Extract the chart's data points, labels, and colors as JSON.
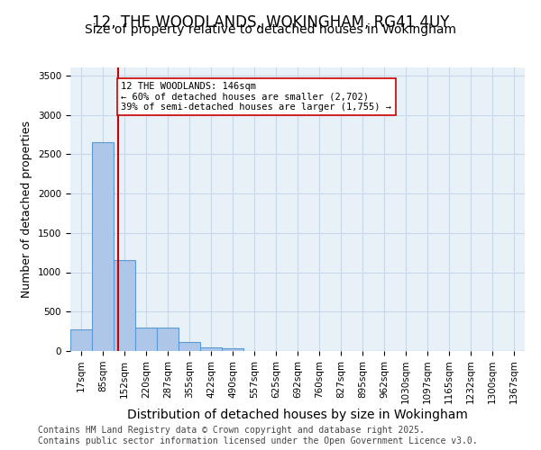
{
  "title_line1": "12, THE WOODLANDS, WOKINGHAM, RG41 4UY",
  "title_line2": "Size of property relative to detached houses in Wokingham",
  "xlabel": "Distribution of detached houses by size in Wokingham",
  "ylabel": "Number of detached properties",
  "bin_labels": [
    "17sqm",
    "85sqm",
    "152sqm",
    "220sqm",
    "287sqm",
    "355sqm",
    "422sqm",
    "490sqm",
    "557sqm",
    "625sqm",
    "692sqm",
    "760sqm",
    "827sqm",
    "895sqm",
    "962sqm",
    "1030sqm",
    "1097sqm",
    "1165sqm",
    "1232sqm",
    "1300sqm",
    "1367sqm"
  ],
  "bar_values": [
    270,
    2650,
    1150,
    300,
    295,
    110,
    50,
    30,
    0,
    0,
    0,
    0,
    0,
    0,
    0,
    0,
    0,
    0,
    0,
    0,
    0
  ],
  "bar_color": "#aec6e8",
  "bar_edge_color": "#5b9bd5",
  "property_line_x": 1.7,
  "property_line_color": "#cc0000",
  "annotation_text": "12 THE WOODLANDS: 146sqm\n← 60% of detached houses are smaller (2,702)\n39% of semi-detached houses are larger (1,755) →",
  "annotation_box_edge_color": "#cc0000",
  "annotation_box_bg_color": "#ffffff",
  "ylim": [
    0,
    3600
  ],
  "yticks": [
    0,
    500,
    1000,
    1500,
    2000,
    2500,
    3000,
    3500
  ],
  "grid_color": "#c8d8e8",
  "background_color": "#e8f0f8",
  "footer_text": "Contains HM Land Registry data © Crown copyright and database right 2025.\nContains public sector information licensed under the Open Government Licence v3.0.",
  "title_fontsize": 12,
  "subtitle_fontsize": 10,
  "xlabel_fontsize": 10,
  "ylabel_fontsize": 9,
  "tick_fontsize": 7.5,
  "footer_fontsize": 7
}
